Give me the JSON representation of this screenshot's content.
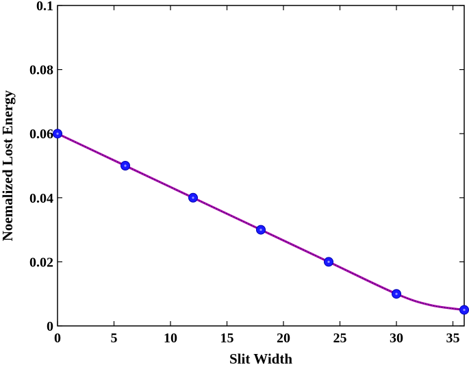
{
  "chart_data": {
    "type": "line",
    "xlabel": "Slit Width",
    "ylabel": "Noemalized Lost Energy",
    "xlim": [
      0,
      36
    ],
    "ylim": [
      0,
      0.1
    ],
    "x_ticks": [
      "0",
      "5",
      "10",
      "15",
      "20",
      "25",
      "30",
      "35"
    ],
    "y_ticks": [
      "0",
      "0.02",
      "0.04",
      "0.06",
      "0.08",
      "0.1"
    ],
    "grid": false,
    "series": [
      {
        "style": "markers",
        "color": "#1a1aff",
        "x": [
          0,
          6,
          12,
          18,
          24,
          30,
          36
        ],
        "y": [
          0.06,
          0.05,
          0.04,
          0.03,
          0.02,
          0.01,
          0.005
        ]
      },
      {
        "style": "smooth-line",
        "color": "#b000b0",
        "x": [
          0,
          6,
          12,
          18,
          24,
          30,
          33,
          36
        ],
        "y": [
          0.06,
          0.05,
          0.04,
          0.03,
          0.02,
          0.01,
          0.0065,
          0.005
        ]
      }
    ]
  }
}
